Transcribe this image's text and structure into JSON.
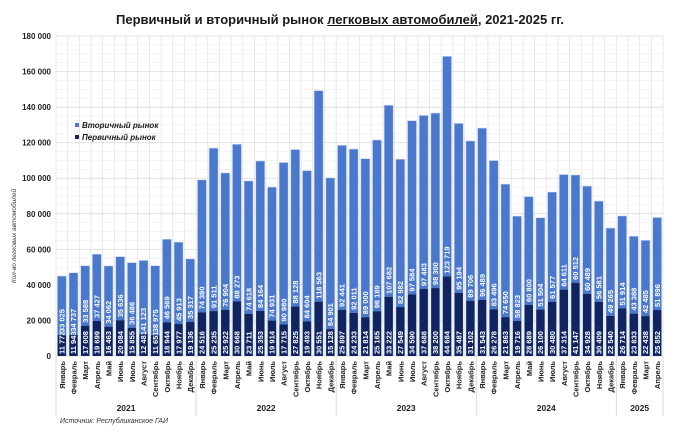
{
  "title": {
    "prefix": "Первичный и вторичный рынок ",
    "underlined": "легковых автомобилей",
    "suffix": ", 2021-2025 гг."
  },
  "source": "Источник: Республиканское ГАИ",
  "colors": {
    "secondary": "#4A78CC",
    "primary": "#0F2461",
    "grid": "#e3e3e3"
  },
  "chart_data": {
    "type": "bar",
    "stacked": true,
    "title": "Первичный и вторичный рынок легковых автомобилей, 2021-2025 гг.",
    "xlabel": "",
    "ylabel": "Кол-во легковых автомобилей",
    "ylim": [
      0,
      180000
    ],
    "yticks": [
      0,
      20000,
      40000,
      60000,
      80000,
      100000,
      120000,
      140000,
      160000,
      180000
    ],
    "ytick_labels": [
      "0",
      "20 000",
      "40 000",
      "60 000",
      "80 000",
      "100 000",
      "120 000",
      "140 000",
      "160 000",
      "180 000"
    ],
    "grid": true,
    "legend_position": "top-left",
    "legend": [
      "Вторичный рынок",
      "Первичный рынок"
    ],
    "years": [
      {
        "label": "2021",
        "count": 12
      },
      {
        "label": "2022",
        "count": 12
      },
      {
        "label": "2023",
        "count": 12
      },
      {
        "label": "2024",
        "count": 12
      },
      {
        "label": "2025",
        "count": 4
      }
    ],
    "categories": [
      "Январь",
      "Февраль",
      "Март",
      "Апрель",
      "Май",
      "Июнь",
      "Июль",
      "Август",
      "Сентябрь",
      "Октябрь",
      "Ноябрь",
      "Декабрь",
      "Январь",
      "Февраль",
      "Март",
      "Апрель",
      "Май",
      "Июнь",
      "Июль",
      "Август",
      "Сентябрь",
      "Октябрь",
      "Ноябрь",
      "Декабрь",
      "Январь",
      "Февраль",
      "Март",
      "Апрель",
      "Май",
      "Июнь",
      "Июль",
      "Август",
      "Сентябрь",
      "Октябрь",
      "Ноябрь",
      "Декабрь",
      "Январь",
      "Февраль",
      "Март",
      "Апрель",
      "Май",
      "Июнь",
      "Июль",
      "Август",
      "Сентябрь",
      "Октябрь",
      "Ноябрь",
      "Декабрь",
      "Январь",
      "Февраль",
      "Март",
      "Апрель"
    ],
    "series": [
      {
        "name": "Первичный рынок",
        "values": [
          11772,
          11943,
          17008,
          19699,
          16463,
          20084,
          15855,
          12481,
          11651,
          18944,
          17977,
          19136,
          24516,
          25235,
          25922,
          30668,
          23711,
          25353,
          19914,
          17715,
          27825,
          19493,
          30551,
          15128,
          25897,
          24233,
          21814,
          25165,
          33222,
          27549,
          34590,
          37688,
          38200,
          44684,
          35487,
          31102,
          31543,
          26278,
          21863,
          19716,
          28689,
          26100,
          30480,
          37314,
          41147,
          34928,
          30409,
          22540,
          26714,
          23833,
          22438,
          25852
        ]
      },
      {
        "name": "Вторичный рынок",
        "values": [
          33025,
          34737,
          33588,
          37427,
          34062,
          35636,
          36486,
          41123,
          38975,
          46569,
          45913,
          35317,
          74380,
          91511,
          76904,
          88273,
          74618,
          84164,
          74931,
          90980,
          88128,
          84604,
          118563,
          84901,
          92441,
          92011,
          89000,
          96189,
          107682,
          82982,
          97584,
          97483,
          98300,
          123719,
          95194,
          89706,
          96489,
          83496,
          74650,
          58823,
          60800,
          51504,
          61577,
          64611,
          60512,
          60489,
          56581,
          49265,
          51914,
          43388,
          42485,
          51896
        ]
      }
    ]
  }
}
